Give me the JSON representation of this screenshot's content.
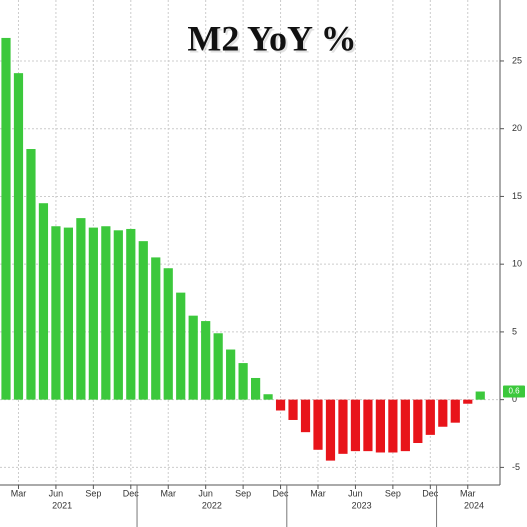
{
  "chart_data": {
    "type": "bar",
    "title": "M2 YoY %",
    "categories": [
      null,
      "Mar",
      null,
      null,
      "Jun",
      null,
      null,
      "Sep",
      null,
      null,
      "Dec",
      null,
      null,
      "Mar",
      null,
      null,
      "Jun",
      null,
      null,
      "Sep",
      null,
      null,
      "Dec",
      null,
      null,
      "Mar",
      null,
      null,
      "Jun",
      null,
      null,
      "Sep",
      null,
      null,
      "Dec",
      null,
      null,
      "Mar",
      null
    ],
    "x_group_labels": [
      "2021",
      "2022",
      "2023",
      "2024"
    ],
    "values": [
      26.7,
      24.1,
      18.5,
      14.5,
      12.8,
      12.7,
      13.4,
      12.7,
      12.8,
      12.5,
      12.6,
      11.7,
      10.5,
      9.7,
      7.9,
      6.2,
      5.8,
      4.9,
      3.7,
      2.7,
      1.6,
      0.4,
      -0.8,
      -1.5,
      -2.4,
      -3.7,
      -4.5,
      -4.0,
      -3.8,
      -3.8,
      -3.9,
      -3.9,
      -3.8,
      -3.2,
      -2.6,
      -2.0,
      -1.7,
      -0.3,
      0.6
    ],
    "positive_color": "#3cc83c",
    "negative_color": "#e8141a",
    "ylim": [
      -6.3,
      29.5
    ],
    "yticks": [
      -5,
      0,
      5,
      10,
      15,
      20,
      25
    ],
    "grid": true,
    "last_value_label": true
  }
}
